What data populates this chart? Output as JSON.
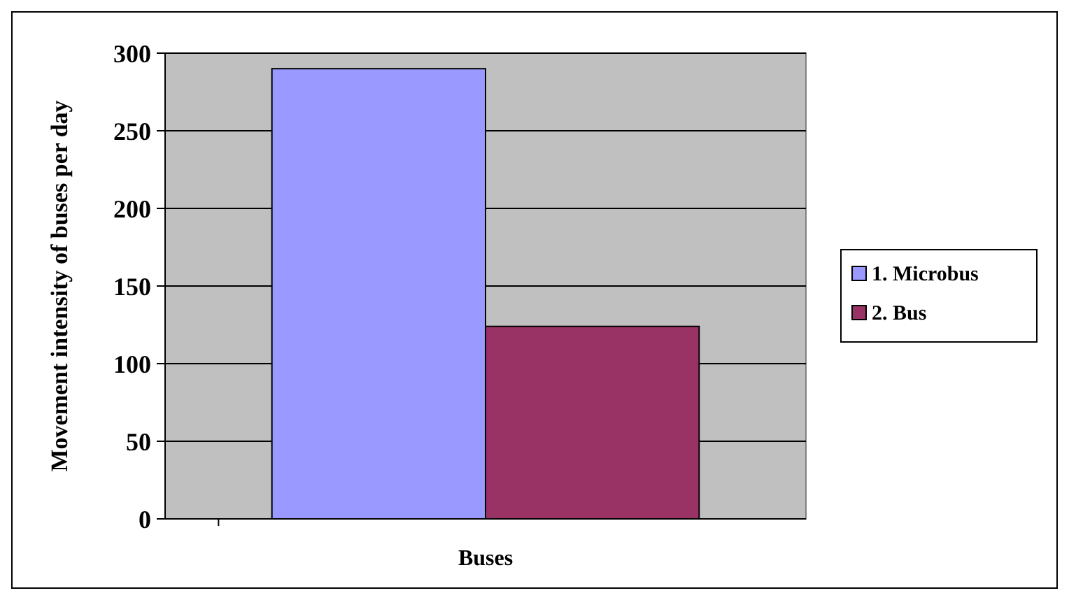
{
  "chart_data": {
    "type": "bar",
    "ylabel": "Movement intensity of buses per day",
    "categories": [
      "Buses"
    ],
    "series": [
      {
        "name": "1. Microbus",
        "color": "#9999ff",
        "values": [
          290
        ]
      },
      {
        "name": "2. Bus",
        "color": "#993366",
        "values": [
          124
        ]
      }
    ],
    "ylim": [
      0,
      300
    ],
    "yticks": [
      0,
      50,
      100,
      150,
      200,
      250,
      300
    ],
    "grid": "y",
    "legend": "right"
  }
}
